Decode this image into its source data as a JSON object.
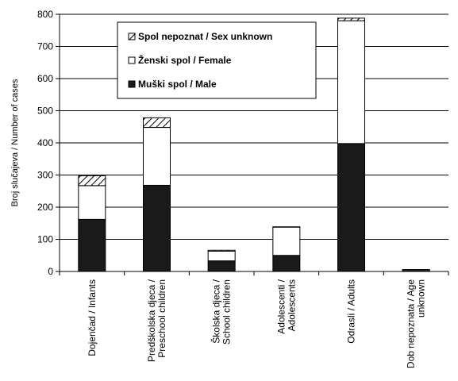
{
  "chart_data": {
    "type": "bar",
    "stacked": true,
    "ylabel": "Broj slučajeva  / Number  of cases",
    "ylim": [
      0,
      800
    ],
    "yticks": [
      0,
      100,
      200,
      300,
      400,
      500,
      600,
      700,
      800
    ],
    "grid": true,
    "legend_position": "top-center",
    "categories": [
      [
        "Dojenčad / Infants"
      ],
      [
        "Predškolska djeca /",
        "Preschool children"
      ],
      [
        "Školska djeca /",
        "School children"
      ],
      [
        "Adolescenti /",
        "Adolescents"
      ],
      [
        "Odrasli / Adults"
      ],
      [
        "Dob nepoznata /  Age",
        "unknown"
      ]
    ],
    "series": [
      {
        "name": "Muški spol / Male",
        "fill": "#1a1a1a",
        "values": [
          162,
          268,
          33,
          50,
          398,
          2
        ]
      },
      {
        "name": "Ženski spol / Female",
        "fill": "#ffffff",
        "values": [
          105,
          180,
          30,
          88,
          382,
          3
        ]
      },
      {
        "name": "Spol nepoznat / Sex unknown",
        "fill": "hatch",
        "values": [
          31,
          30,
          3,
          1,
          8,
          1
        ]
      }
    ],
    "legend_order": [
      2,
      1,
      0
    ]
  }
}
